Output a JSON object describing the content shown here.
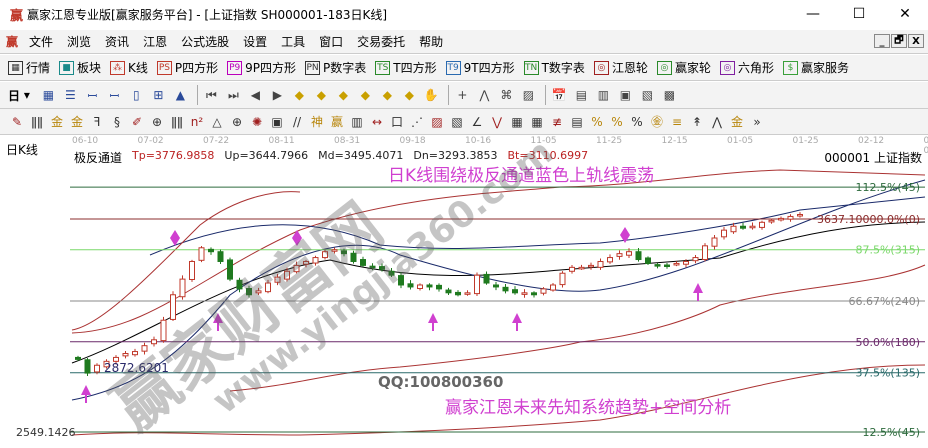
{
  "window": {
    "logo": "赢",
    "title": "赢家江恩专业版[赢家服务平台] - [上证指数  SH000001-183日K线]",
    "minimize": "—",
    "maximize": "☐",
    "close": "✕"
  },
  "menu": {
    "logo": "赢",
    "items": [
      "文件",
      "浏览",
      "资讯",
      "江恩",
      "公式选股",
      "设置",
      "工具",
      "窗口",
      "交易委托",
      "帮助"
    ],
    "mdi": [
      "_",
      "🗗",
      "X"
    ]
  },
  "toolbar1": [
    {
      "icon": "▦",
      "label": "行情",
      "color": "#333"
    },
    {
      "icon": "■",
      "label": "板块",
      "color": "#1a8a8a"
    },
    {
      "icon": "⁂",
      "label": "K线",
      "color": "#c0392b"
    },
    {
      "icon": "PS",
      "label": "P四方形",
      "color": "#c0392b"
    },
    {
      "icon": "P9",
      "label": "9P四方形",
      "color": "#b0b"
    },
    {
      "icon": "PN",
      "label": "P数字表",
      "color": "#333"
    },
    {
      "icon": "TS",
      "label": "T四方形",
      "color": "#2a8a2a"
    },
    {
      "icon": "T9",
      "label": "9T四方形",
      "color": "#2a6ab0"
    },
    {
      "icon": "TN",
      "label": "T数字表",
      "color": "#2a8a2a"
    },
    {
      "icon": "◎",
      "label": "江恩轮",
      "color": "#a02020"
    },
    {
      "icon": "◎",
      "label": "赢家轮",
      "color": "#2a8a2a"
    },
    {
      "icon": "◎",
      "label": "六角形",
      "color": "#8020a0"
    },
    {
      "icon": "$",
      "label": "赢家服务",
      "color": "#3aa03a"
    }
  ],
  "toolbar2": {
    "period": "日",
    "icons": [
      "chart-type",
      "text-note",
      "ma3",
      "ma9",
      "bar-type",
      "zoom",
      "color",
      "first",
      "last",
      "prev",
      "next",
      "diamond-left",
      "diamond-up",
      "diamond-lr",
      "diamond-in",
      "diamond-x",
      "diamond-ud",
      "hand",
      "crosshair",
      "line",
      "fan",
      "gann",
      "calendar",
      "calculator",
      "report",
      "save",
      "export",
      "print"
    ]
  },
  "toolbar3": {
    "icons": [
      "pencil",
      "grid",
      "gold1",
      "gold2",
      "f-line",
      "spiral",
      "draw",
      "circle",
      "lines",
      "n2",
      "triangle",
      "target",
      "star",
      "square",
      "parallel",
      "divine",
      "ying",
      "ruler",
      "measure",
      "box",
      "fan2",
      "box2",
      "box3",
      "angle",
      "wave",
      "grid2",
      "grid3",
      "lines3",
      "table",
      "pct-line",
      "percent",
      "pct2",
      "gold-circle",
      "gold-lines",
      "arrow",
      "wave2",
      "gold3",
      "more"
    ]
  },
  "chart": {
    "period_label": "日K线",
    "dates": [
      "06-10",
      "07-02",
      "07-22",
      "08-11",
      "08-31",
      "09-18",
      "10-16",
      "11-05",
      "11-25",
      "12-15",
      "01-05",
      "01-25",
      "02-12",
      "03-0"
    ],
    "indicator": {
      "name": "极反通道",
      "tp": "Tp=3776.9858",
      "up": "Up=3644.7966",
      "md": "Md=3495.4071",
      "dn": "Dn=3293.3853",
      "bt": "Bt=3110.6997"
    },
    "symbol": "000001  上证指数",
    "levels": [
      {
        "label": "112.5%(45)",
        "price": 3800,
        "color": "#2e6b3e"
      },
      {
        "label": "3637.10000.0%(0)",
        "price": 3637.1,
        "color": "#8b2c2c"
      },
      {
        "label": "87.5%(315)",
        "price": 3480,
        "color": "#7ad86a"
      },
      {
        "label": "66.67%(240)",
        "price": 3218,
        "color": "#888888"
      },
      {
        "label": "50.0%(180)",
        "price": 3010,
        "color": "#6a2a6a"
      },
      {
        "label": "37.5%(135)",
        "price": 2852,
        "color": "#2a6a6a"
      },
      {
        "label": "12.5%(45)",
        "price": 2549.1426,
        "color": "#2e6b3e"
      }
    ],
    "low_label": "2872.6201",
    "axis_label": "2549.1426",
    "closes": [
      2920,
      2850,
      2890,
      2910,
      2930,
      2950,
      2960,
      2990,
      3020,
      3120,
      3250,
      3330,
      3420,
      3490,
      3470,
      3420,
      3330,
      3280,
      3250,
      3270,
      3310,
      3340,
      3370,
      3400,
      3420,
      3440,
      3470,
      3480,
      3460,
      3420,
      3400,
      3390,
      3380,
      3350,
      3300,
      3290,
      3300,
      3290,
      3280,
      3260,
      3250,
      3260,
      3350,
      3310,
      3290,
      3270,
      3260,
      3260,
      3250,
      3280,
      3300,
      3360,
      3390,
      3390,
      3400,
      3420,
      3440,
      3460,
      3470,
      3430,
      3410,
      3400,
      3395,
      3410,
      3420,
      3440,
      3500,
      3540,
      3580,
      3600,
      3590,
      3600,
      3620,
      3630,
      3640,
      3650,
      3660
    ],
    "annotations": {
      "top": "日K线围绕极反通道蓝色上轨线震荡",
      "bottom": "赢家江恩未来先知系统趋势+空间分析",
      "qq": "QQ:100800360"
    },
    "watermarks": [
      "赢家财富网",
      "www.yingjia360.com"
    ],
    "up_color": "#c0392b",
    "down_color": "#1f7a1f",
    "marker_color": "#d040d0"
  }
}
